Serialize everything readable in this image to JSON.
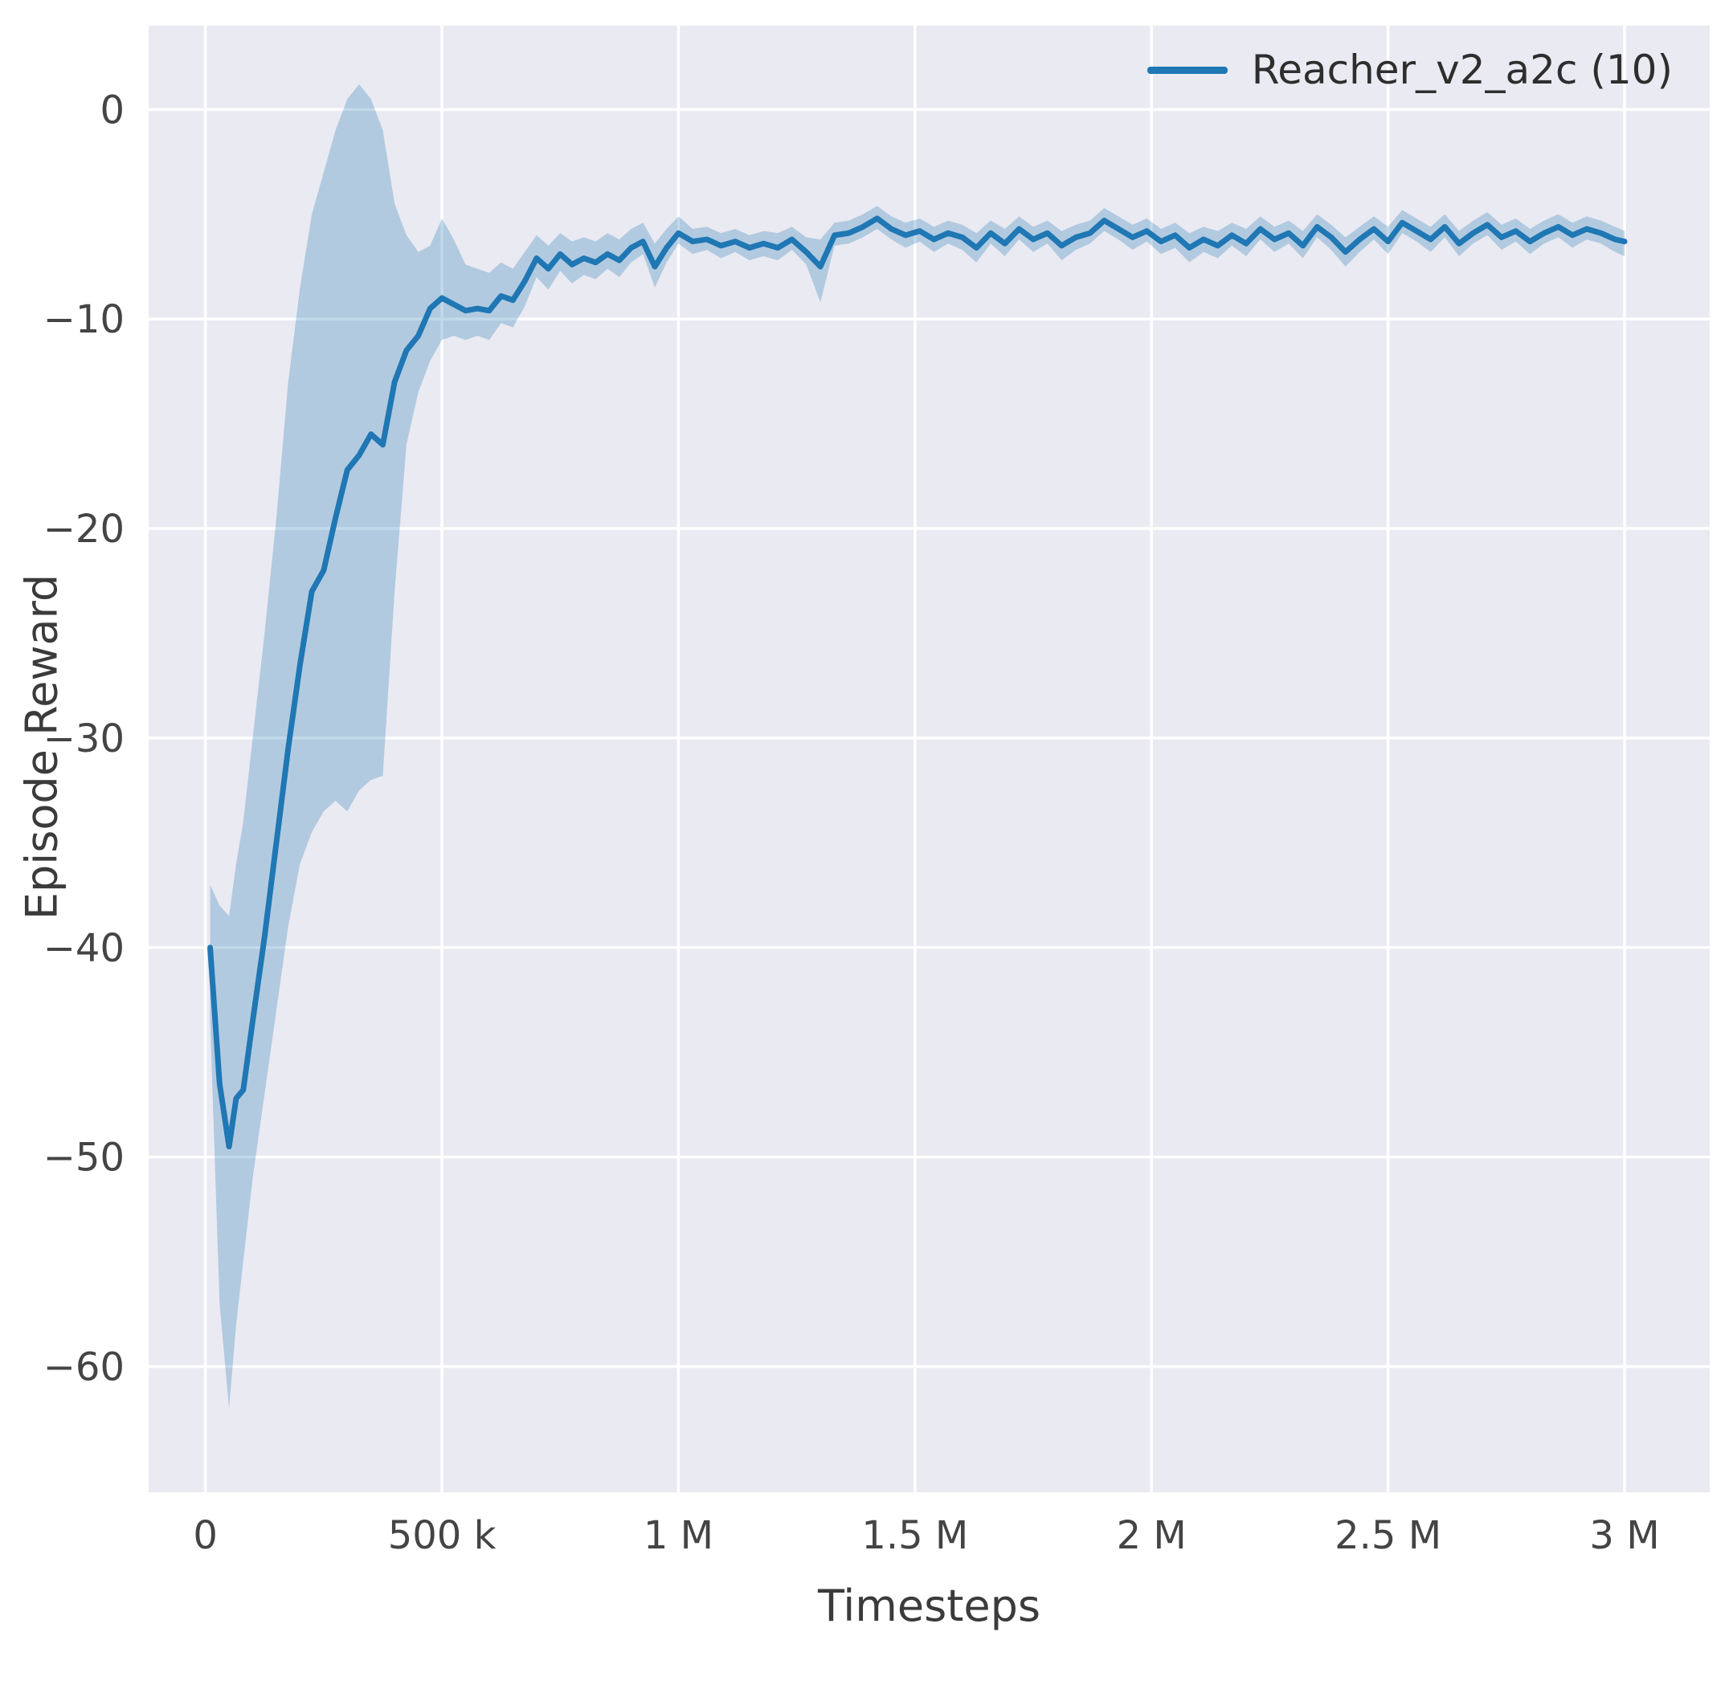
{
  "colors": {
    "figure_bg": "#ffffff",
    "plot_bg": "#eaeaf2",
    "grid": "#ffffff",
    "tick_text": "#444444",
    "label_text": "#3b3b3b",
    "legend_text": "#2e2e2e"
  },
  "chart_data": {
    "type": "line",
    "title": "",
    "xlabel": "Timesteps",
    "ylabel": "Episode Reward",
    "legend_label": "Reacher_v2_a2c (10)",
    "legend_position": "upper right",
    "grid": true,
    "xlim": [
      -120000,
      3180000
    ],
    "ylim": [
      -66,
      4
    ],
    "xticks": {
      "values": [
        0,
        500000,
        1000000,
        1500000,
        2000000,
        2500000,
        3000000
      ],
      "labels": [
        "0",
        "500 k",
        "1 M",
        "1.5 M",
        "2 M",
        "2.5 M",
        "3 M"
      ]
    },
    "yticks": {
      "values": [
        0,
        -10,
        -20,
        -30,
        -40,
        -50,
        -60
      ],
      "labels": [
        "0",
        "−10",
        "−20",
        "−30",
        "−40",
        "−50",
        "−60"
      ]
    },
    "series": [
      {
        "name": "Reacher_v2_a2c (10)",
        "color": "#1f77b4",
        "band_color": "#1f77b4",
        "band_opacity": 0.28,
        "line_width": 7,
        "x": [
          10000,
          30000,
          50000,
          65000,
          80000,
          100000,
          125000,
          150000,
          175000,
          200000,
          225000,
          250000,
          275000,
          300000,
          325000,
          350000,
          375000,
          400000,
          425000,
          450000,
          475000,
          500000,
          525000,
          550000,
          575000,
          600000,
          625000,
          650000,
          675000,
          700000,
          725000,
          750000,
          775000,
          800000,
          825000,
          850000,
          875000,
          900000,
          925000,
          950000,
          975000,
          1000000,
          1030000,
          1060000,
          1090000,
          1120000,
          1150000,
          1180000,
          1210000,
          1240000,
          1270000,
          1300000,
          1330000,
          1360000,
          1390000,
          1420000,
          1450000,
          1480000,
          1510000,
          1540000,
          1570000,
          1600000,
          1630000,
          1660000,
          1690000,
          1720000,
          1750000,
          1780000,
          1810000,
          1840000,
          1870000,
          1900000,
          1930000,
          1960000,
          1990000,
          2020000,
          2050000,
          2080000,
          2110000,
          2140000,
          2170000,
          2200000,
          2230000,
          2260000,
          2290000,
          2320000,
          2350000,
          2380000,
          2410000,
          2440000,
          2470000,
          2500000,
          2530000,
          2560000,
          2590000,
          2620000,
          2650000,
          2680000,
          2710000,
          2740000,
          2770000,
          2800000,
          2830000,
          2860000,
          2890000,
          2920000,
          2950000,
          2980000,
          3000000
        ],
        "mean": [
          -40.0,
          -46.5,
          -49.5,
          -47.2,
          -46.8,
          -43.5,
          -39.5,
          -35.0,
          -30.5,
          -26.5,
          -23.0,
          -22.0,
          -19.5,
          -17.2,
          -16.5,
          -15.5,
          -16.0,
          -13.0,
          -11.5,
          -10.8,
          -9.5,
          -9.0,
          -9.3,
          -9.6,
          -9.5,
          -9.6,
          -8.9,
          -9.1,
          -8.2,
          -7.1,
          -7.6,
          -6.9,
          -7.4,
          -7.1,
          -7.3,
          -6.9,
          -7.2,
          -6.6,
          -6.3,
          -7.5,
          -6.6,
          -5.9,
          -6.3,
          -6.2,
          -6.5,
          -6.3,
          -6.6,
          -6.4,
          -6.6,
          -6.2,
          -6.8,
          -7.5,
          -6.0,
          -5.9,
          -5.6,
          -5.2,
          -5.7,
          -6.0,
          -5.8,
          -6.2,
          -5.9,
          -6.1,
          -6.6,
          -5.9,
          -6.4,
          -5.7,
          -6.2,
          -5.9,
          -6.5,
          -6.1,
          -5.9,
          -5.3,
          -5.7,
          -6.1,
          -5.8,
          -6.3,
          -6.0,
          -6.6,
          -6.2,
          -6.5,
          -6.0,
          -6.4,
          -5.7,
          -6.2,
          -5.9,
          -6.5,
          -5.6,
          -6.1,
          -6.8,
          -6.2,
          -5.7,
          -6.3,
          -5.4,
          -5.8,
          -6.2,
          -5.6,
          -6.4,
          -5.9,
          -5.5,
          -6.1,
          -5.8,
          -6.3,
          -5.9,
          -5.6,
          -6.0,
          -5.7,
          -5.9,
          -6.2,
          -6.3
        ],
        "lower": [
          -43.5,
          -57.0,
          -62.0,
          -58.0,
          -55.0,
          -51.0,
          -47.0,
          -43.0,
          -39.0,
          -36.0,
          -34.5,
          -33.5,
          -33.0,
          -33.5,
          -32.5,
          -32.0,
          -31.8,
          -23.0,
          -16.0,
          -13.5,
          -12.0,
          -11.0,
          -10.8,
          -11.0,
          -10.8,
          -11.0,
          -10.2,
          -10.4,
          -9.4,
          -8.0,
          -8.6,
          -7.7,
          -8.3,
          -7.9,
          -8.1,
          -7.6,
          -8.0,
          -7.3,
          -6.9,
          -8.5,
          -7.3,
          -6.4,
          -6.9,
          -6.7,
          -7.1,
          -6.8,
          -7.2,
          -7.0,
          -7.2,
          -6.7,
          -7.4,
          -9.2,
          -6.5,
          -6.4,
          -6.1,
          -5.7,
          -6.2,
          -6.6,
          -6.3,
          -6.8,
          -6.4,
          -6.7,
          -7.3,
          -6.4,
          -7.0,
          -6.2,
          -6.8,
          -6.4,
          -7.2,
          -6.7,
          -6.4,
          -5.8,
          -6.2,
          -6.7,
          -6.3,
          -6.9,
          -6.6,
          -7.3,
          -6.8,
          -7.1,
          -6.5,
          -7.0,
          -6.2,
          -6.8,
          -6.4,
          -7.1,
          -6.1,
          -6.7,
          -7.5,
          -6.8,
          -6.2,
          -6.9,
          -5.9,
          -6.3,
          -6.8,
          -6.1,
          -7.0,
          -6.4,
          -6.0,
          -6.7,
          -6.3,
          -6.9,
          -6.4,
          -6.1,
          -6.6,
          -6.2,
          -6.4,
          -6.8,
          -7.0
        ],
        "upper": [
          -37.0,
          -38.0,
          -38.5,
          -36.0,
          -34.0,
          -30.0,
          -25.0,
          -19.5,
          -13.0,
          -8.5,
          -5.0,
          -3.0,
          -1.0,
          0.5,
          1.2,
          0.5,
          -1.0,
          -4.5,
          -6.0,
          -6.8,
          -6.5,
          -5.2,
          -6.2,
          -7.4,
          -7.6,
          -7.8,
          -7.3,
          -7.6,
          -6.8,
          -6.0,
          -6.5,
          -5.9,
          -6.3,
          -6.1,
          -6.3,
          -5.9,
          -6.2,
          -5.7,
          -5.4,
          -6.4,
          -5.7,
          -5.1,
          -5.7,
          -5.6,
          -5.9,
          -5.7,
          -6.0,
          -5.8,
          -5.9,
          -5.6,
          -6.1,
          -6.2,
          -5.4,
          -5.3,
          -5.0,
          -4.6,
          -5.1,
          -5.4,
          -5.2,
          -5.6,
          -5.3,
          -5.5,
          -5.9,
          -5.3,
          -5.7,
          -5.1,
          -5.6,
          -5.3,
          -5.8,
          -5.5,
          -5.3,
          -4.7,
          -5.1,
          -5.5,
          -5.2,
          -5.7,
          -5.4,
          -5.9,
          -5.6,
          -5.8,
          -5.4,
          -5.7,
          -5.1,
          -5.6,
          -5.3,
          -5.8,
          -5.0,
          -5.5,
          -6.1,
          -5.6,
          -5.1,
          -5.6,
          -4.8,
          -5.2,
          -5.6,
          -5.0,
          -5.8,
          -5.3,
          -4.9,
          -5.5,
          -5.2,
          -5.7,
          -5.3,
          -5.0,
          -5.4,
          -5.1,
          -5.3,
          -5.6,
          -5.8
        ]
      }
    ]
  }
}
